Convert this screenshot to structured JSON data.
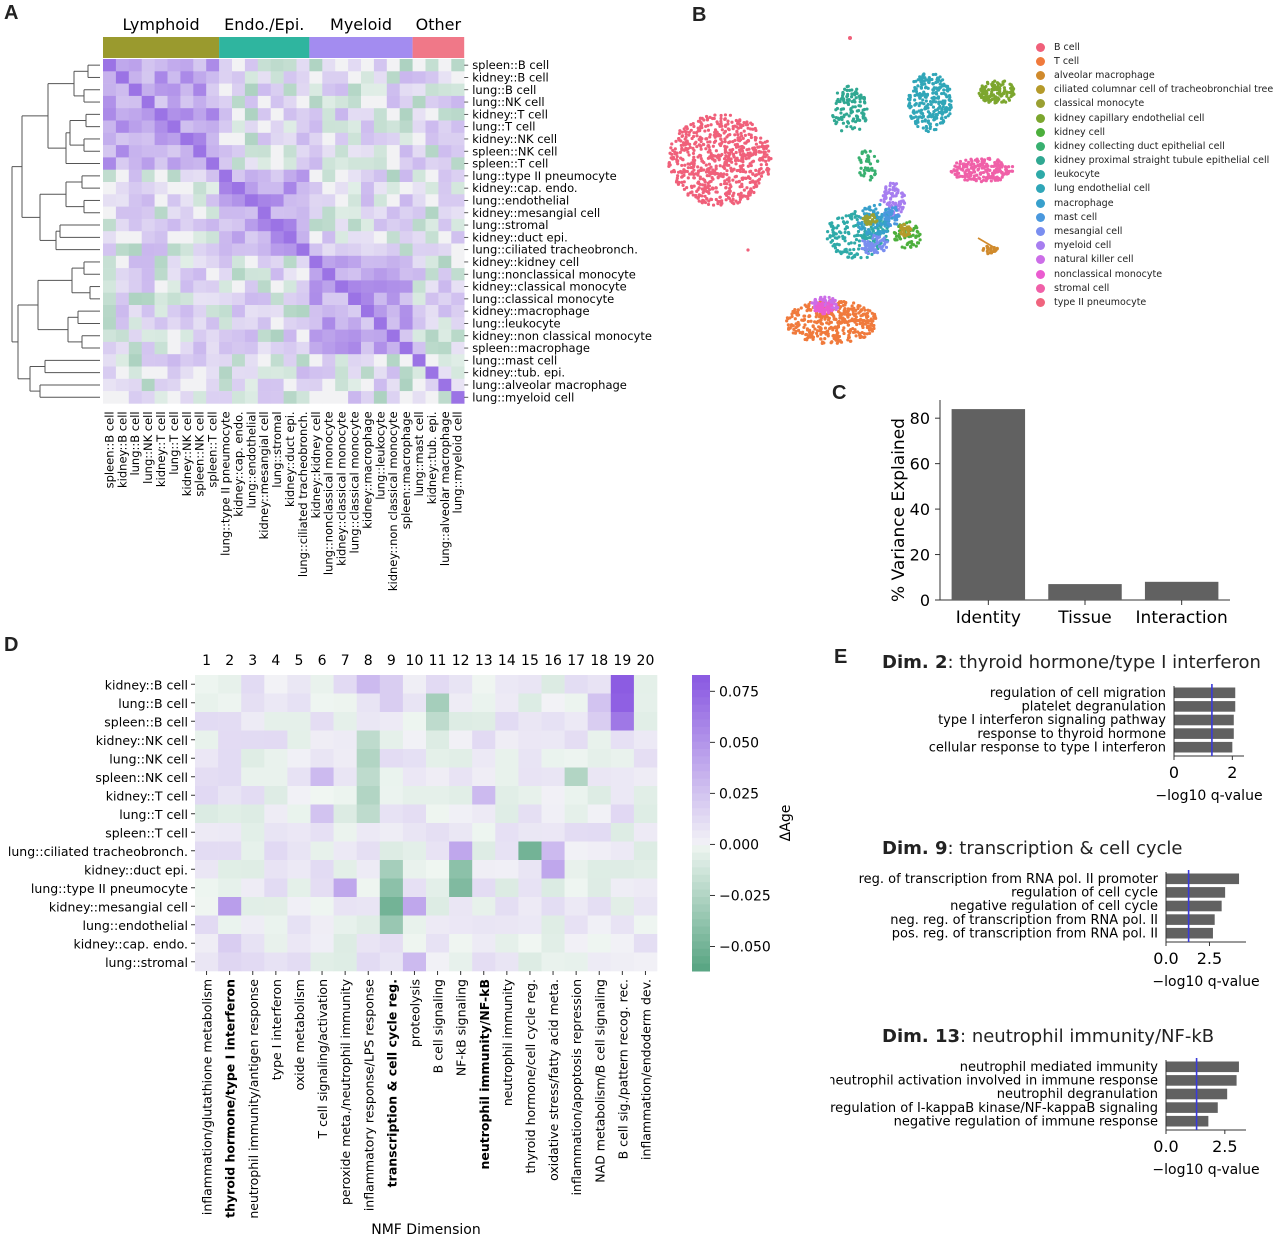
{
  "panels": {
    "a": "A",
    "b": "B",
    "c": "C",
    "d": "D",
    "e": "E"
  },
  "panelA": {
    "groups": [
      {
        "label": "Lymphoid",
        "color": "#9a9a2e"
      },
      {
        "label": "Endo./Epi.",
        "color": "#2fb59f"
      },
      {
        "label": "Myeloid",
        "color": "#a38cf0"
      },
      {
        "label": "Other",
        "color": "#f07888"
      }
    ],
    "rows": [
      "spleen::B cell",
      "kidney::B cell",
      "lung::B cell",
      "lung::NK cell",
      "kidney::T cell",
      "lung::T cell",
      "kidney::NK cell",
      "spleen::NK cell",
      "spleen::T cell",
      "lung::type II pneumocyte",
      "kidney::cap. endo.",
      "lung::endothelial",
      "kidney::mesangial cell",
      "lung::stromal",
      "kidney::duct epi.",
      "lung::ciliated tracheobronch.",
      "kidney::kidney cell",
      "lung::nonclassical monocyte",
      "kidney::classical monocyte",
      "lung::classical monocyte",
      "kidney::macrophage",
      "lung::leukocyte",
      "kidney::non classical monocyte",
      "spleen::macrophage",
      "lung::mast cell",
      "kidney::tub. epi.",
      "lung::alveolar macrophage",
      "lung::myeloid cell"
    ]
  },
  "panelB": {
    "legend": [
      {
        "label": "B cell",
        "color": "#f0607a"
      },
      {
        "label": "T cell",
        "color": "#f07a3c"
      },
      {
        "label": "alveolar macrophage",
        "color": "#d08a2c"
      },
      {
        "label": "ciliated columnar cell of tracheobronchial tree",
        "color": "#b59a2a"
      },
      {
        "label": "classical monocyte",
        "color": "#9aa032"
      },
      {
        "label": "kidney capillary endothelial cell",
        "color": "#7ca62e"
      },
      {
        "label": "kidney cell",
        "color": "#4caf3c"
      },
      {
        "label": "kidney collecting duct epithelial cell",
        "color": "#38b070"
      },
      {
        "label": "kidney proximal straight tubule epithelial cell",
        "color": "#30a892"
      },
      {
        "label": "leukocyte",
        "color": "#2eaaa8"
      },
      {
        "label": "lung endothelial cell",
        "color": "#30a6b8"
      },
      {
        "label": "macrophage",
        "color": "#38a0cc"
      },
      {
        "label": "mast cell",
        "color": "#4a98de"
      },
      {
        "label": "mesangial cell",
        "color": "#7a8ef0"
      },
      {
        "label": "myeloid cell",
        "color": "#a77ef0"
      },
      {
        "label": "natural killer cell",
        "color": "#cc6ee8"
      },
      {
        "label": "nonclassical monocyte",
        "color": "#ea5cd0"
      },
      {
        "label": "stromal cell",
        "color": "#f060a8"
      },
      {
        "label": "type II pneumocyte",
        "color": "#f0647e"
      }
    ]
  },
  "chart_data": [
    {
      "type": "bar",
      "title": "",
      "categories": [
        "Identity",
        "Tissue",
        "Interaction"
      ],
      "values": [
        84,
        7,
        8
      ],
      "xlabel": "",
      "ylabel": "% Variance Explained",
      "ylim": [
        0,
        88
      ],
      "yticks": [
        "0",
        "20",
        "40",
        "60",
        "80"
      ]
    },
    {
      "type": "heatmap",
      "xlabel": "NMF Dimension",
      "colorbar_label": "ΔAge",
      "colorbar_ticks": [
        "0.075",
        "0.050",
        "0.025",
        "0.000",
        "−0.025",
        "−0.050"
      ],
      "columns": [
        "1",
        "2",
        "3",
        "4",
        "5",
        "6",
        "7",
        "8",
        "9",
        "10",
        "11",
        "12",
        "13",
        "14",
        "15",
        "16",
        "17",
        "18",
        "19",
        "20"
      ],
      "column_labels": [
        "inflammation/glutathione metabolism",
        "thyroid hormone/type I interferon",
        "neutrophil immunity/antigen response",
        "type I interferon",
        "oxide metabolism",
        "T cell signaling/activation",
        "peroxide meta./neutrophil immunity",
        "inflammatory response/LPS response",
        "transcription & cell cycle reg.",
        "proteolysis",
        "B cell signaling",
        "NF-kB signaling",
        "neutrophil immunity/NF-kB",
        "neutrophil immunity",
        "thyroid hormone/cell cycle reg.",
        "oxidative stress/fatty acid meta.",
        "inflammation/apoptosis repression",
        "NAD metabolism/B cell signaling",
        "B cell sig./pattern recog. rec.",
        "inflammation/endoderm dev."
      ],
      "bold_columns": [
        1,
        8,
        12
      ],
      "rows": [
        "kidney::B cell",
        "lung::B cell",
        "spleen::B cell",
        "kidney::NK cell",
        "lung::NK cell",
        "spleen::NK cell",
        "kidney::T cell",
        "lung::T cell",
        "spleen::T cell",
        "lung::ciliated tracheobronch.",
        "kidney::duct epi.",
        "lung::type II pneumocyte",
        "kidney::mesangial cell",
        "lung::endothelial",
        "kidney::cap. endo.",
        "lung::stromal"
      ]
    },
    {
      "type": "bar",
      "orientation": "horizontal",
      "title_bold": "Dim. 2",
      "title_rest": ":  thyroid hormone/type I interferon",
      "categories": [
        "regulation of cell migration",
        "platelet degranulation",
        "type I interferon signaling pathway",
        "response to thyroid hormone",
        "cellular response to type I interferon"
      ],
      "values": [
        2.1,
        2.1,
        2.05,
        2.05,
        2.0
      ],
      "threshold": 1.3,
      "xticks": [
        "0",
        "2"
      ],
      "xlim": [
        0,
        2.4
      ],
      "xlabel": "−log10 q-value"
    },
    {
      "type": "bar",
      "orientation": "horizontal",
      "title_bold": "Dim. 9",
      "title_rest": ": transcription & cell cycle",
      "categories": [
        "reg. of transcription from RNA pol. II promoter",
        "regulation of cell cycle",
        "negative regulation of cell cycle",
        "neg. reg. of transcription from RNA pol. II",
        "pos. reg. of transcription from RNA pol. II"
      ],
      "values": [
        4.2,
        3.4,
        3.2,
        2.8,
        2.7
      ],
      "threshold": 1.3,
      "xticks": [
        "0.0",
        "2.5"
      ],
      "xlim": [
        0,
        4.6
      ],
      "xlabel": "−log10 q-value"
    },
    {
      "type": "bar",
      "orientation": "horizontal",
      "title_bold": "Dim. 13",
      "title_rest": ": neutrophil immunity/NF-kB",
      "categories": [
        "neutrophil mediated immunity",
        "neutrophil activation involved in immune response",
        "neutrophil degranulation",
        "regulation of I-kappaB kinase/NF-kappaB signaling",
        "negative regulation of immune response"
      ],
      "values": [
        3.1,
        3.0,
        2.6,
        2.2,
        1.8
      ],
      "threshold": 1.3,
      "xticks": [
        "0.0",
        "2.5"
      ],
      "xlim": [
        0,
        3.4
      ],
      "xlabel": "−log10 q-value"
    }
  ]
}
